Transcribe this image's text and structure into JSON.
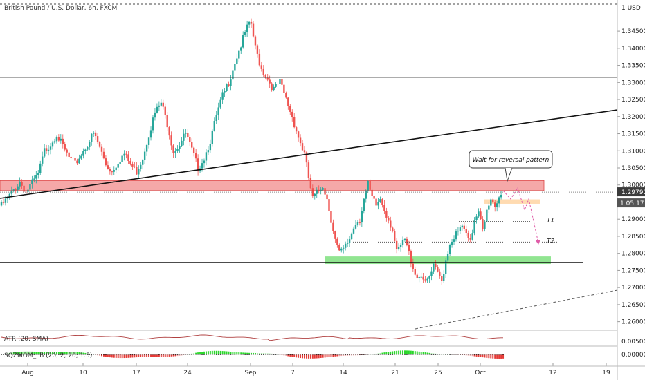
{
  "header": {
    "title": "British Pound / U.S. Dollar, 6h, FXCM",
    "currency": "1 USD"
  },
  "colors": {
    "up": "#26a69a",
    "down": "#ef5350",
    "resistance_zone": "#f28b8b",
    "support_zone": "#7ee07e",
    "entry_zone": "#ffd7a8",
    "projection": "#e05ca8",
    "price_badge": "#3a3a3a"
  },
  "chart_data": {
    "type": "candlestick",
    "title": "British Pound / U.S. Dollar, 6h, FXCM",
    "ylim": [
      1.2575,
      1.3525
    ],
    "y_ticks": [
      "1.34500",
      "1.34000",
      "1.33500",
      "1.33000",
      "1.32500",
      "1.32000",
      "1.31500",
      "1.31000",
      "1.30500",
      "1.30000",
      "1.29500",
      "1.29000",
      "1.28500",
      "1.28000",
      "1.27500",
      "1.27000",
      "1.26500",
      "1.26000"
    ],
    "x_ticks": [
      "Aug",
      "10",
      "17",
      "24",
      "Sep",
      "7",
      "14",
      "21",
      "25",
      "Oct",
      "12",
      "19"
    ],
    "current_price": "1.29791",
    "countdown": "1 05:17",
    "close_path": [
      [
        0,
        1.294
      ],
      [
        3,
        1.296
      ],
      [
        6,
        1.2985
      ],
      [
        9,
        1.301
      ],
      [
        12,
        1.298
      ],
      [
        15,
        1.3005
      ],
      [
        18,
        1.303
      ],
      [
        21,
        1.31
      ],
      [
        24,
        1.312
      ],
      [
        27,
        1.315
      ],
      [
        30,
        1.311
      ],
      [
        33,
        1.308
      ],
      [
        36,
        1.306
      ],
      [
        39,
        1.309
      ],
      [
        42,
        1.312
      ],
      [
        45,
        1.315
      ],
      [
        48,
        1.311
      ],
      [
        51,
        1.306
      ],
      [
        54,
        1.304
      ],
      [
        57,
        1.307
      ],
      [
        60,
        1.309
      ],
      [
        63,
        1.306
      ],
      [
        66,
        1.304
      ],
      [
        69,
        1.308
      ],
      [
        72,
        1.315
      ],
      [
        75,
        1.321
      ],
      [
        78,
        1.324
      ],
      [
        81,
        1.318
      ],
      [
        84,
        1.31
      ],
      [
        87,
        1.312
      ],
      [
        90,
        1.315
      ],
      [
        93,
        1.31
      ],
      [
        96,
        1.305
      ],
      [
        99,
        1.308
      ],
      [
        102,
        1.313
      ],
      [
        105,
        1.32
      ],
      [
        108,
        1.326
      ],
      [
        111,
        1.33
      ],
      [
        114,
        1.336
      ],
      [
        117,
        1.341
      ],
      [
        120,
        1.346
      ],
      [
        122,
        1.347
      ],
      [
        124,
        1.34
      ],
      [
        127,
        1.334
      ],
      [
        130,
        1.331
      ],
      [
        133,
        1.328
      ],
      [
        136,
        1.33
      ],
      [
        139,
        1.325
      ],
      [
        142,
        1.32
      ],
      [
        145,
        1.314
      ],
      [
        148,
        1.309
      ],
      [
        150,
        1.302
      ],
      [
        152,
        1.296
      ],
      [
        154,
        1.2975
      ],
      [
        157,
        1.3
      ],
      [
        159,
        1.296
      ],
      [
        161,
        1.29
      ],
      [
        163,
        1.284
      ],
      [
        165,
        1.28
      ],
      [
        167,
        1.281
      ],
      [
        169,
        1.283
      ],
      [
        171,
        1.286
      ],
      [
        173,
        1.289
      ],
      [
        175,
        1.29
      ],
      [
        177,
        1.296
      ],
      [
        179,
        1.3
      ],
      [
        181,
        1.296
      ],
      [
        183,
        1.294
      ],
      [
        185,
        1.296
      ],
      [
        187,
        1.293
      ],
      [
        189,
        1.29
      ],
      [
        191,
        1.287
      ],
      [
        193,
        1.28
      ],
      [
        195,
        1.282
      ],
      [
        197,
        1.284
      ],
      [
        199,
        1.28
      ],
      [
        201,
        1.276
      ],
      [
        203,
        1.273
      ],
      [
        205,
        1.274
      ],
      [
        207,
        1.271
      ],
      [
        209,
        1.273
      ],
      [
        211,
        1.276
      ],
      [
        213,
        1.274
      ],
      [
        215,
        1.272
      ],
      [
        217,
        1.278
      ],
      [
        219,
        1.283
      ],
      [
        221,
        1.285
      ],
      [
        223,
        1.286
      ],
      [
        225,
        1.288
      ],
      [
        227,
        1.285
      ],
      [
        229,
        1.283
      ],
      [
        231,
        1.29
      ],
      [
        233,
        1.293
      ],
      [
        235,
        1.288
      ],
      [
        237,
        1.292
      ],
      [
        239,
        1.295
      ],
      [
        241,
        1.293
      ],
      [
        243,
        1.296
      ],
      [
        244,
        1.2979
      ]
    ],
    "levels": {
      "horizontal_top": 1.3315,
      "resistance_zone": [
        1.2983,
        1.3013
      ],
      "resistance_mid": 1.2983,
      "current_dotted": 1.29791,
      "entry_zone": [
        1.2949,
        1.2958
      ],
      "t1": 1.2893,
      "t2": 1.2833,
      "support_zone": [
        1.2773,
        1.2787
      ],
      "support_line": 1.2773
    },
    "annotations": {
      "callout": "Wait for reversal pattern",
      "t1": "T1",
      "t2": "T2"
    },
    "indicators": [
      {
        "name": "ATR (20, SMA)",
        "value": "0.00500"
      },
      {
        "name": "SQZMOM_LB (20, 2, 20, 1.5)",
        "value": "0.00000"
      }
    ]
  }
}
